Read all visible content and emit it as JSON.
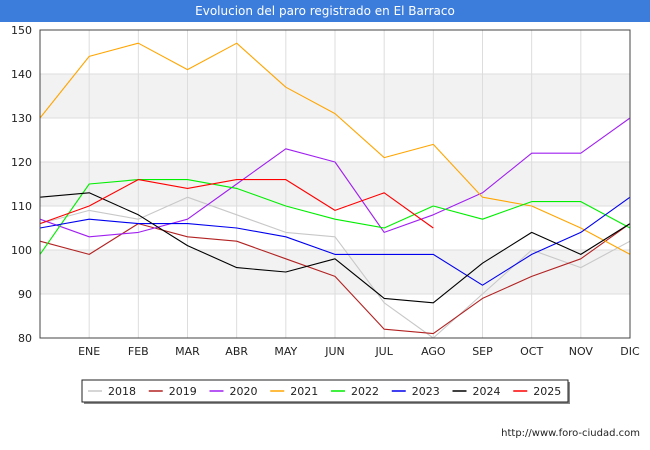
{
  "header": {
    "title": "Evolucion del paro registrado en El Barraco"
  },
  "footer": {
    "credit": "http://www.foro-ciudad.com"
  },
  "chart_data": {
    "type": "line",
    "title": "Evolucion del paro registrado en El Barraco",
    "xlabel": "",
    "ylabel": "",
    "categories": [
      "",
      "ENE",
      "FEB",
      "MAR",
      "ABR",
      "MAY",
      "JUN",
      "JUL",
      "AGO",
      "SEP",
      "OCT",
      "NOV",
      "DIC"
    ],
    "y_ticks": [
      80,
      90,
      100,
      110,
      120,
      130,
      140,
      150
    ],
    "ylim": [
      80,
      150
    ],
    "grid": true,
    "legend_position": "bottom",
    "series": [
      {
        "name": "2018",
        "color": "#c8c8c8",
        "values": [
          106,
          109,
          107,
          112,
          108,
          104,
          103,
          88,
          80,
          90,
          100,
          96,
          102
        ]
      },
      {
        "name": "2019",
        "color": "#b22222",
        "values": [
          102,
          99,
          106,
          103,
          102,
          98,
          94,
          82,
          81,
          89,
          94,
          98,
          106
        ]
      },
      {
        "name": "2020",
        "color": "#a020f0",
        "values": [
          107,
          103,
          104,
          107,
          115,
          123,
          120,
          104,
          108,
          113,
          122,
          122,
          130
        ]
      },
      {
        "name": "2021",
        "color": "#ffa500",
        "values": [
          130,
          144,
          147,
          141,
          147,
          137,
          131,
          121,
          124,
          112,
          110,
          105,
          99
        ]
      },
      {
        "name": "2022",
        "color": "#00ee00",
        "values": [
          99,
          115,
          116,
          116,
          114,
          110,
          107,
          105,
          110,
          107,
          111,
          111,
          105
        ]
      },
      {
        "name": "2023",
        "color": "#0000ee",
        "values": [
          105,
          107,
          106,
          106,
          105,
          103,
          99,
          99,
          99,
          92,
          99,
          104,
          112
        ]
      },
      {
        "name": "2024",
        "color": "#000000",
        "values": [
          112,
          113,
          108,
          101,
          96,
          95,
          98,
          89,
          88,
          97,
          104,
          99,
          106
        ]
      },
      {
        "name": "2025",
        "color": "#ff0000",
        "values": [
          106,
          110,
          116,
          114,
          116,
          116,
          109,
          113,
          105,
          null,
          null,
          null,
          null
        ]
      }
    ]
  }
}
